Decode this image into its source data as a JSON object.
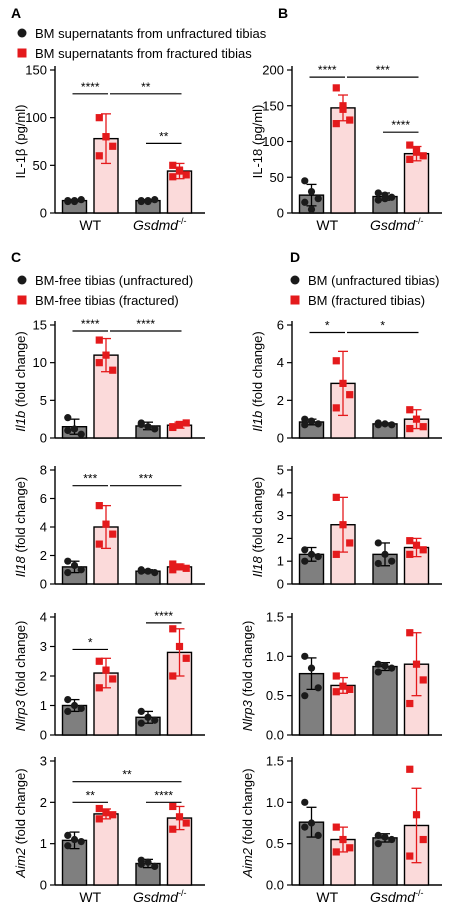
{
  "colors": {
    "gray": "#7f7f7f",
    "pink": "#fbdada",
    "red": "#e41a1c",
    "black": "#1a1a1a"
  },
  "chart_data": [
    {
      "panel_label": "A",
      "type": "bar",
      "legend": [
        {
          "label": "BM supernatants from unfractured tibias",
          "marker": "circle"
        },
        {
          "label": "BM supernatants from fractured tibias",
          "marker": "square"
        }
      ],
      "ylabel": "IL-1β (pg/ml)",
      "ylim": [
        0,
        150
      ],
      "yticks": [
        "0",
        "50",
        "100",
        "150"
      ],
      "groups": [
        "WT",
        "Gsdmd",
        "-/-"
      ],
      "show_xlabels": true,
      "series": [
        {
          "values": [
            13,
            13
          ],
          "err": [
            1,
            1
          ],
          "points": [
            [
              12,
              13,
              14,
              13,
              12
            ],
            [
              12,
              13,
              14,
              13,
              12
            ]
          ]
        },
        {
          "values": [
            78,
            44
          ],
          "err": [
            26,
            8
          ],
          "points": [
            [
              100,
              80,
              70,
              60,
              80
            ],
            [
              50,
              45,
              40,
              38,
              44
            ]
          ]
        }
      ],
      "sig": [
        {
          "from": [
            0,
            0
          ],
          "to": [
            0,
            1
          ],
          "y": 125,
          "text": "****"
        },
        {
          "from": [
            0,
            1
          ],
          "to": [
            1,
            1
          ],
          "y": 125,
          "text": "**"
        },
        {
          "from": [
            1,
            0
          ],
          "to": [
            1,
            1
          ],
          "y": 73,
          "text": "**"
        }
      ]
    },
    {
      "panel_label": "B",
      "type": "bar",
      "ylabel": "IL-18 (pg/ml)",
      "ylim": [
        0,
        200
      ],
      "yticks": [
        "0",
        "50",
        "100",
        "150",
        "200"
      ],
      "groups": [
        "WT",
        "Gsdmd",
        "-/-"
      ],
      "show_xlabels": true,
      "series": [
        {
          "values": [
            25,
            23
          ],
          "err": [
            15,
            5
          ],
          "points": [
            [
              45,
              30,
              20,
              15,
              5
            ],
            [
              28,
              25,
              22,
              18,
              20
            ]
          ]
        },
        {
          "values": [
            147,
            83
          ],
          "err": [
            18,
            10
          ],
          "points": [
            [
              175,
              145,
              130,
              125,
              150
            ],
            [
              95,
              85,
              80,
              75,
              88
            ]
          ]
        }
      ],
      "sig": [
        {
          "from": [
            0,
            0
          ],
          "to": [
            0,
            1
          ],
          "y": 190,
          "text": "****"
        },
        {
          "from": [
            0,
            1
          ],
          "to": [
            1,
            1
          ],
          "y": 190,
          "text": "***"
        },
        {
          "from": [
            1,
            0
          ],
          "to": [
            1,
            1
          ],
          "y": 113,
          "text": "****"
        }
      ]
    },
    {
      "panel_label": "C",
      "type": "bar",
      "legend": [
        {
          "label": "BM-free tibias (unfractured)",
          "marker": "circle"
        },
        {
          "label": "BM-free tibias (fractured)",
          "marker": "square"
        }
      ],
      "ylabel_italic": "Il1b",
      "ylabel": "(fold change)",
      "ylim": [
        0,
        15
      ],
      "yticks": [
        "0",
        "5",
        "10",
        "15"
      ],
      "show_xlabels": false,
      "series": [
        {
          "values": [
            1.5,
            1.6
          ],
          "err": [
            1.0,
            0.5
          ],
          "points": [
            [
              2.7,
              1.2,
              0.5,
              1.0
            ],
            [
              2.0,
              1.5,
              1.2,
              1.8
            ]
          ]
        },
        {
          "values": [
            11,
            1.7
          ],
          "err": [
            2.2,
            0.4
          ],
          "points": [
            [
              13,
              11,
              9,
              10
            ],
            [
              1.5,
              1.8,
              2.0,
              1.4
            ]
          ]
        }
      ],
      "sig": [
        {
          "from": [
            0,
            0
          ],
          "to": [
            0,
            1
          ],
          "y": 14.2,
          "text": "****"
        },
        {
          "from": [
            0,
            1
          ],
          "to": [
            1,
            1
          ],
          "y": 14.2,
          "text": "****"
        }
      ]
    },
    {
      "panel_label": "D",
      "type": "bar",
      "legend": [
        {
          "label": "BM (unfractured tibias)",
          "marker": "circle"
        },
        {
          "label": "BM (fractured tibias)",
          "marker": "square"
        }
      ],
      "ylabel_italic": "Il1b",
      "ylabel": "(fold change)",
      "ylim": [
        0,
        6
      ],
      "yticks": [
        "0",
        "2",
        "4",
        "6"
      ],
      "show_xlabels": false,
      "series": [
        {
          "values": [
            0.85,
            0.75
          ],
          "err": [
            0.15,
            0.05
          ],
          "points": [
            [
              1.0,
              0.9,
              0.75,
              0.7
            ],
            [
              0.8,
              0.75,
              0.7,
              0.7
            ]
          ]
        },
        {
          "values": [
            2.9,
            1.0
          ],
          "err": [
            1.7,
            0.5
          ],
          "points": [
            [
              4.1,
              2.9,
              2.3,
              1.6
            ],
            [
              1.5,
              1.0,
              0.6,
              0.5
            ]
          ]
        }
      ],
      "sig": [
        {
          "from": [
            0,
            0
          ],
          "to": [
            0,
            1
          ],
          "y": 5.6,
          "text": "*"
        },
        {
          "from": [
            0,
            1
          ],
          "to": [
            1,
            1
          ],
          "y": 5.6,
          "text": "*"
        }
      ]
    },
    {
      "type": "bar",
      "ylabel_italic": "Il18",
      "ylabel": "(fold change)",
      "ylim": [
        0,
        8
      ],
      "yticks": [
        "0",
        "2",
        "4",
        "6",
        "8"
      ],
      "show_xlabels": false,
      "series": [
        {
          "values": [
            1.2,
            0.9
          ],
          "err": [
            0.4,
            0.1
          ],
          "points": [
            [
              1.6,
              1.3,
              1.0,
              0.8
            ],
            [
              1.0,
              0.9,
              0.8,
              0.9
            ]
          ]
        },
        {
          "values": [
            4.0,
            1.2
          ],
          "err": [
            1.5,
            0.2
          ],
          "points": [
            [
              5.5,
              4.2,
              3.5,
              2.8
            ],
            [
              1.4,
              1.2,
              1.1,
              1.0
            ]
          ]
        }
      ],
      "sig": [
        {
          "from": [
            0,
            0
          ],
          "to": [
            0,
            1
          ],
          "y": 6.9,
          "text": "***"
        },
        {
          "from": [
            0,
            1
          ],
          "to": [
            1,
            1
          ],
          "y": 6.9,
          "text": "***"
        }
      ]
    },
    {
      "type": "bar",
      "ylabel_italic": "Il18",
      "ylabel": "(fold change)",
      "ylim": [
        0,
        5
      ],
      "yticks": [
        "0",
        "1",
        "2",
        "3",
        "4",
        "5"
      ],
      "show_xlabels": false,
      "series": [
        {
          "values": [
            1.3,
            1.3
          ],
          "err": [
            0.3,
            0.5
          ],
          "points": [
            [
              1.5,
              1.3,
              1.2,
              1.0
            ],
            [
              1.8,
              1.3,
              1.0,
              0.9
            ]
          ]
        },
        {
          "values": [
            2.6,
            1.6
          ],
          "err": [
            1.2,
            0.4
          ],
          "points": [
            [
              3.8,
              2.6,
              1.8,
              1.3
            ],
            [
              1.9,
              1.7,
              1.5,
              1.3
            ]
          ]
        }
      ],
      "sig": []
    },
    {
      "type": "bar",
      "ylabel_italic": "Nlrp3",
      "ylabel": "(fold change)",
      "ylim": [
        0,
        4
      ],
      "yticks": [
        "0",
        "1",
        "2",
        "3",
        "4"
      ],
      "show_xlabels": false,
      "series": [
        {
          "values": [
            1.0,
            0.6
          ],
          "err": [
            0.2,
            0.2
          ],
          "points": [
            [
              1.2,
              1.0,
              0.9,
              0.8
            ],
            [
              0.8,
              0.6,
              0.5,
              0.4
            ]
          ]
        },
        {
          "values": [
            2.1,
            2.8
          ],
          "err": [
            0.5,
            0.8
          ],
          "points": [
            [
              2.5,
              2.2,
              1.9,
              1.6
            ],
            [
              3.6,
              3.0,
              2.6,
              2.0
            ]
          ]
        }
      ],
      "sig": [
        {
          "from": [
            0,
            0
          ],
          "to": [
            0,
            1
          ],
          "y": 2.9,
          "text": "*"
        },
        {
          "from": [
            1,
            0
          ],
          "to": [
            1,
            1
          ],
          "y": 3.8,
          "text": "****"
        }
      ]
    },
    {
      "type": "bar",
      "ylabel_italic": "Nlrp3",
      "ylabel": "(fold change)",
      "ylim": [
        0,
        1.5
      ],
      "yticks": [
        "0.0",
        "0.5",
        "1.0",
        "1.5"
      ],
      "show_xlabels": false,
      "series": [
        {
          "values": [
            0.78,
            0.87
          ],
          "err": [
            0.2,
            0.05
          ],
          "points": [
            [
              1.0,
              0.85,
              0.6,
              0.5
            ],
            [
              0.9,
              0.88,
              0.85,
              0.8
            ]
          ]
        },
        {
          "values": [
            0.63,
            0.9
          ],
          "err": [
            0.1,
            0.4
          ],
          "points": [
            [
              0.75,
              0.62,
              0.58,
              0.55
            ],
            [
              1.3,
              0.9,
              0.7,
              0.4
            ]
          ]
        }
      ],
      "sig": []
    },
    {
      "type": "bar",
      "ylabel_italic": "Aim2",
      "ylabel": "(fold change)",
      "ylim": [
        0,
        3
      ],
      "yticks": [
        "0",
        "1",
        "2",
        "3"
      ],
      "groups": [
        "WT",
        "Gsdmd",
        "-/-"
      ],
      "show_xlabels": true,
      "series": [
        {
          "values": [
            1.08,
            0.52
          ],
          "err": [
            0.2,
            0.1
          ],
          "points": [
            [
              1.2,
              1.1,
              1.05,
              0.95
            ],
            [
              0.6,
              0.55,
              0.45,
              0.5
            ]
          ]
        },
        {
          "values": [
            1.72,
            1.62
          ],
          "err": [
            0.12,
            0.28
          ],
          "points": [
            [
              1.85,
              1.75,
              1.7,
              1.6
            ],
            [
              1.9,
              1.65,
              1.5,
              1.35
            ]
          ]
        }
      ],
      "sig": [
        {
          "from": [
            0,
            0
          ],
          "to": [
            0,
            1
          ],
          "y": 2.0,
          "text": "**"
        },
        {
          "from": [
            0,
            0
          ],
          "to": [
            1,
            1
          ],
          "y": 2.5,
          "text": "**"
        },
        {
          "from": [
            1,
            0
          ],
          "to": [
            1,
            1
          ],
          "y": 2.0,
          "text": "****"
        }
      ]
    },
    {
      "type": "bar",
      "ylabel_italic": "Aim2",
      "ylabel": "(fold change)",
      "ylim": [
        0,
        1.5
      ],
      "yticks": [
        "0.0",
        "0.5",
        "1.0",
        "1.5"
      ],
      "groups": [
        "WT",
        "Gsdmd",
        "-/-"
      ],
      "show_xlabels": true,
      "series": [
        {
          "values": [
            0.76,
            0.57
          ],
          "err": [
            0.18,
            0.05
          ],
          "points": [
            [
              1.0,
              0.75,
              0.6,
              0.7
            ],
            [
              0.6,
              0.58,
              0.55,
              0.5
            ]
          ]
        },
        {
          "values": [
            0.55,
            0.72
          ],
          "err": [
            0.15,
            0.45
          ],
          "points": [
            [
              0.7,
              0.55,
              0.45,
              0.4
            ],
            [
              1.4,
              0.85,
              0.55,
              0.35
            ]
          ]
        }
      ],
      "sig": []
    }
  ]
}
